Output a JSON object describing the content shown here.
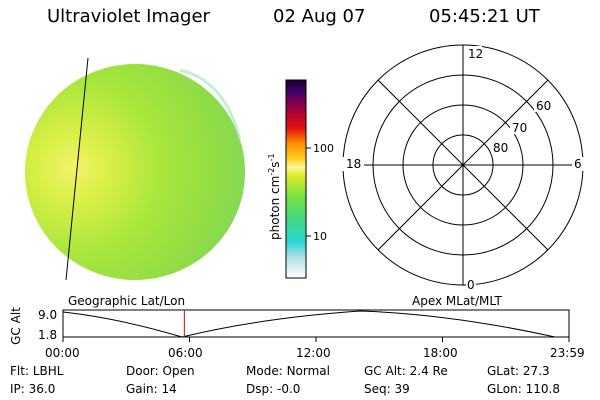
{
  "header": {
    "instrument": "Ultraviolet Imager",
    "date": "02 Aug 07",
    "time": "05:45:21 UT"
  },
  "colorbar": {
    "label": "photon cm",
    "label_sup1": "-2",
    "label_mid": "s",
    "label_sup2": "-1",
    "ticks": [
      "100",
      "10"
    ]
  },
  "polar_plot": {
    "mlt_labels": {
      "top": "12",
      "right": "6",
      "bottom": "0",
      "left": "18"
    },
    "lat_labels": [
      "60",
      "70",
      "80"
    ]
  },
  "image_captions": {
    "left": "Geographic Lat/Lon",
    "right": "Apex MLat/MLT"
  },
  "timeline": {
    "ylabel": "GC Alt",
    "yticks": [
      "9.0",
      "1.8"
    ],
    "xticks": [
      "00:00",
      "06:00",
      "12:00",
      "18:00",
      "23:59"
    ],
    "current_time_fraction": 0.2398,
    "marker_color": "#e00000"
  },
  "info": {
    "row1": [
      {
        "key": "Flt:",
        "value": "LBHL"
      },
      {
        "key": "Door:",
        "value": "Open"
      },
      {
        "key": "Mode:",
        "value": "Normal"
      },
      {
        "key": "GC Alt:",
        "value": "2.4 Re"
      },
      {
        "key": "GLat:",
        "value": "27.3"
      }
    ],
    "row2": [
      {
        "key": "IP:",
        "value": "36.0"
      },
      {
        "key": "Gain:",
        "value": "14"
      },
      {
        "key": "Dsp:",
        "value": "-0.0"
      },
      {
        "key": "Seq:",
        "value": "39"
      },
      {
        "key": "GLon:",
        "value": "110.8"
      }
    ]
  }
}
